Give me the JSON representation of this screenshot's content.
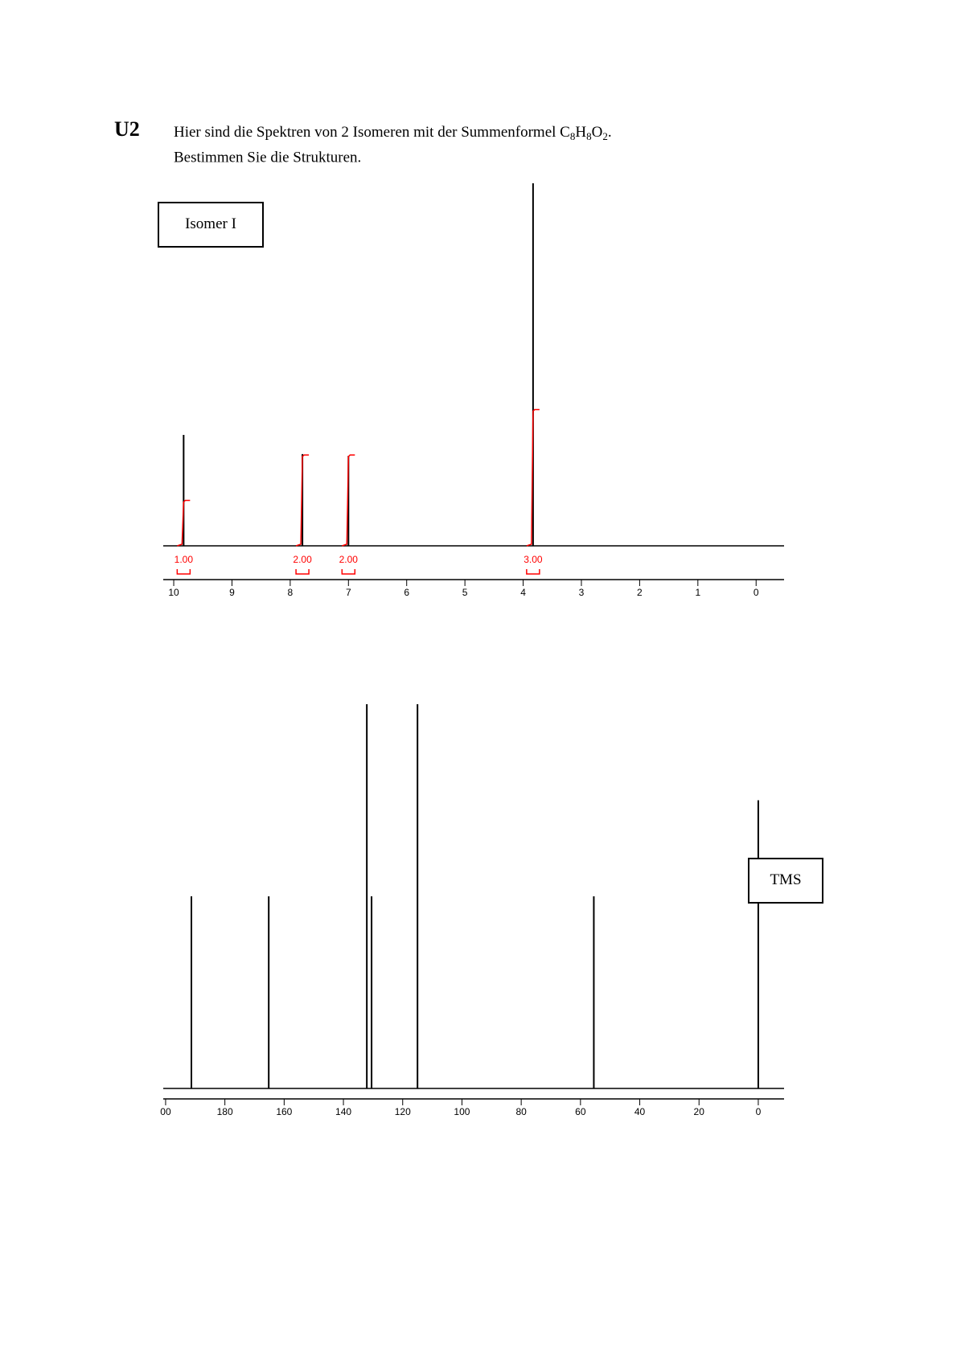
{
  "header": {
    "label": "U2",
    "line1": [
      "Hier sind die Spektren von 2 Isomeren mit der Summenformel C",
      "8",
      "H",
      "8",
      "O",
      "2",
      "."
    ],
    "line2": "Bestimmen Sie die Strukturen."
  },
  "chart_data": [
    {
      "type": "spectrum",
      "annotation": "Isomer I",
      "color": "#000000",
      "x": [
        9.83,
        7.79,
        7.0,
        3.83
      ],
      "values": [
        30.6,
        25.3,
        24.8,
        100
      ],
      "integrals": [
        1,
        2,
        2,
        3
      ],
      "integral_labels": [
        "1.00",
        "2.00",
        "2.00",
        "3.00"
      ],
      "integral_color": "#ff0000",
      "xlim": [
        10.18,
        -0.48
      ],
      "ylim": [
        0,
        100
      ],
      "xticks": [
        10,
        9,
        8,
        7,
        6,
        5,
        4,
        3,
        2,
        1,
        0
      ]
    },
    {
      "type": "spectrum",
      "annotation": "TMS",
      "color": "#000000",
      "x": [
        191.3,
        165.2,
        132.1,
        130.5,
        115.0,
        55.5,
        0
      ],
      "values": [
        50,
        50,
        100,
        50,
        100,
        50,
        75
      ],
      "xlim": [
        200.8,
        -8.7
      ],
      "ylim": [
        0,
        100
      ],
      "xticks": [
        {
          "value": 200,
          "label": "00"
        },
        180,
        160,
        140,
        120,
        100,
        80,
        60,
        40,
        20,
        0
      ]
    }
  ]
}
